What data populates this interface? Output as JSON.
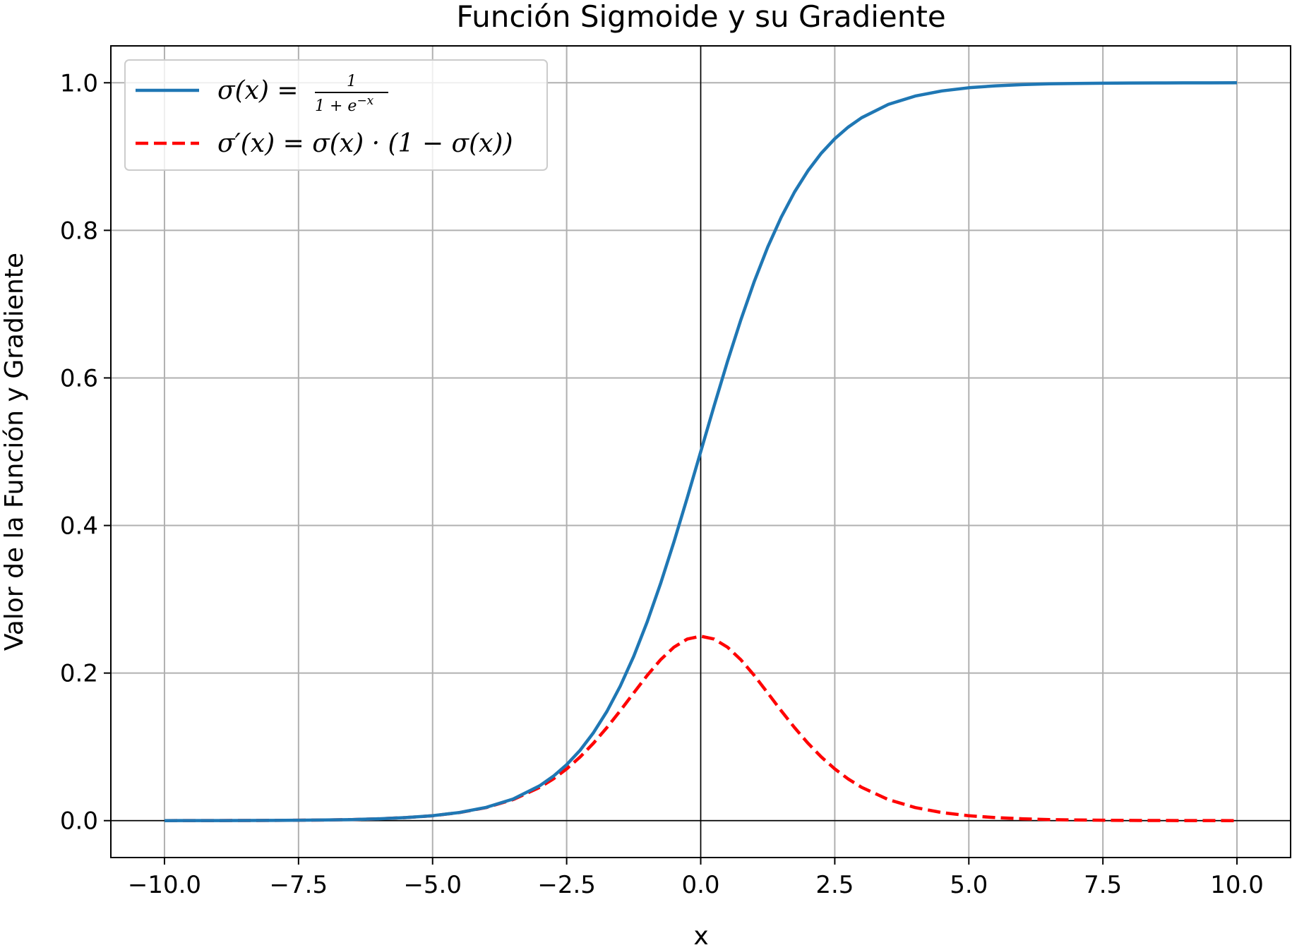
{
  "chart_data": {
    "type": "line",
    "title": "Función Sigmoide y su Gradiente",
    "xlabel": "x",
    "ylabel": "Valor de la Función y Gradiente",
    "xlim": [
      -11.0,
      11.0
    ],
    "ylim": [
      -0.05,
      1.05
    ],
    "xticks": [
      -10.0,
      -7.5,
      -5.0,
      -2.5,
      0.0,
      2.5,
      5.0,
      7.5,
      10.0
    ],
    "xtick_labels": [
      "−10.0",
      "−7.5",
      "−5.0",
      "−2.5",
      "0.0",
      "2.5",
      "5.0",
      "7.5",
      "10.0"
    ],
    "yticks": [
      0.0,
      0.2,
      0.4,
      0.6,
      0.8,
      1.0
    ],
    "ytick_labels": [
      "0.0",
      "0.2",
      "0.4",
      "0.6",
      "0.8",
      "1.0"
    ],
    "grid": true,
    "legend_position": "top-left",
    "reference_lines": {
      "x": 0,
      "y": 0
    },
    "x": [
      -10,
      -9.5,
      -9,
      -8.5,
      -8,
      -7.5,
      -7,
      -6.5,
      -6,
      -5.5,
      -5,
      -4.5,
      -4,
      -3.5,
      -3,
      -2.75,
      -2.5,
      -2.25,
      -2,
      -1.75,
      -1.5,
      -1.25,
      -1,
      -0.75,
      -0.5,
      -0.25,
      0,
      0.25,
      0.5,
      0.75,
      1,
      1.25,
      1.5,
      1.75,
      2,
      2.25,
      2.5,
      2.75,
      3,
      3.5,
      4,
      4.5,
      5,
      5.5,
      6,
      6.5,
      7,
      7.5,
      8,
      8.5,
      9,
      9.5,
      10
    ],
    "series": [
      {
        "name": "sigma",
        "legend_parts": [
          "σ(x) = ",
          "1",
          "1 + e",
          "−x"
        ],
        "color": "#1f77b4",
        "style": "solid",
        "values": [
          0.0,
          0.0001,
          0.0001,
          0.0002,
          0.0003,
          0.0006,
          0.0009,
          0.0015,
          0.0025,
          0.0041,
          0.0067,
          0.011,
          0.018,
          0.0293,
          0.0474,
          0.0601,
          0.0759,
          0.0953,
          0.1192,
          0.148,
          0.1824,
          0.2227,
          0.2689,
          0.3208,
          0.3775,
          0.4378,
          0.5,
          0.5622,
          0.6225,
          0.6792,
          0.7311,
          0.7773,
          0.8176,
          0.852,
          0.8808,
          0.9047,
          0.9241,
          0.9399,
          0.9526,
          0.9707,
          0.982,
          0.989,
          0.9933,
          0.9959,
          0.9975,
          0.9985,
          0.9991,
          0.9994,
          0.9997,
          0.9998,
          0.9999,
          0.9999,
          1.0
        ]
      },
      {
        "name": "sigma-prime",
        "legend_parts": [
          "σ′(x) = σ(x) · (1 − σ(x))"
        ],
        "color": "#ff0000",
        "style": "dashed",
        "values": [
          0.0,
          0.0001,
          0.0001,
          0.0002,
          0.0003,
          0.0006,
          0.0009,
          0.0015,
          0.0025,
          0.0041,
          0.0066,
          0.0109,
          0.0177,
          0.0285,
          0.0452,
          0.0565,
          0.0701,
          0.0862,
          0.105,
          0.1261,
          0.1491,
          0.1731,
          0.1966,
          0.2179,
          0.235,
          0.2461,
          0.25,
          0.2461,
          0.235,
          0.2179,
          0.1966,
          0.1731,
          0.1491,
          0.1261,
          0.105,
          0.0862,
          0.0701,
          0.0565,
          0.0452,
          0.0285,
          0.0177,
          0.0109,
          0.0066,
          0.0041,
          0.0025,
          0.0015,
          0.0009,
          0.0006,
          0.0003,
          0.0002,
          0.0001,
          0.0001,
          0.0
        ]
      }
    ]
  }
}
